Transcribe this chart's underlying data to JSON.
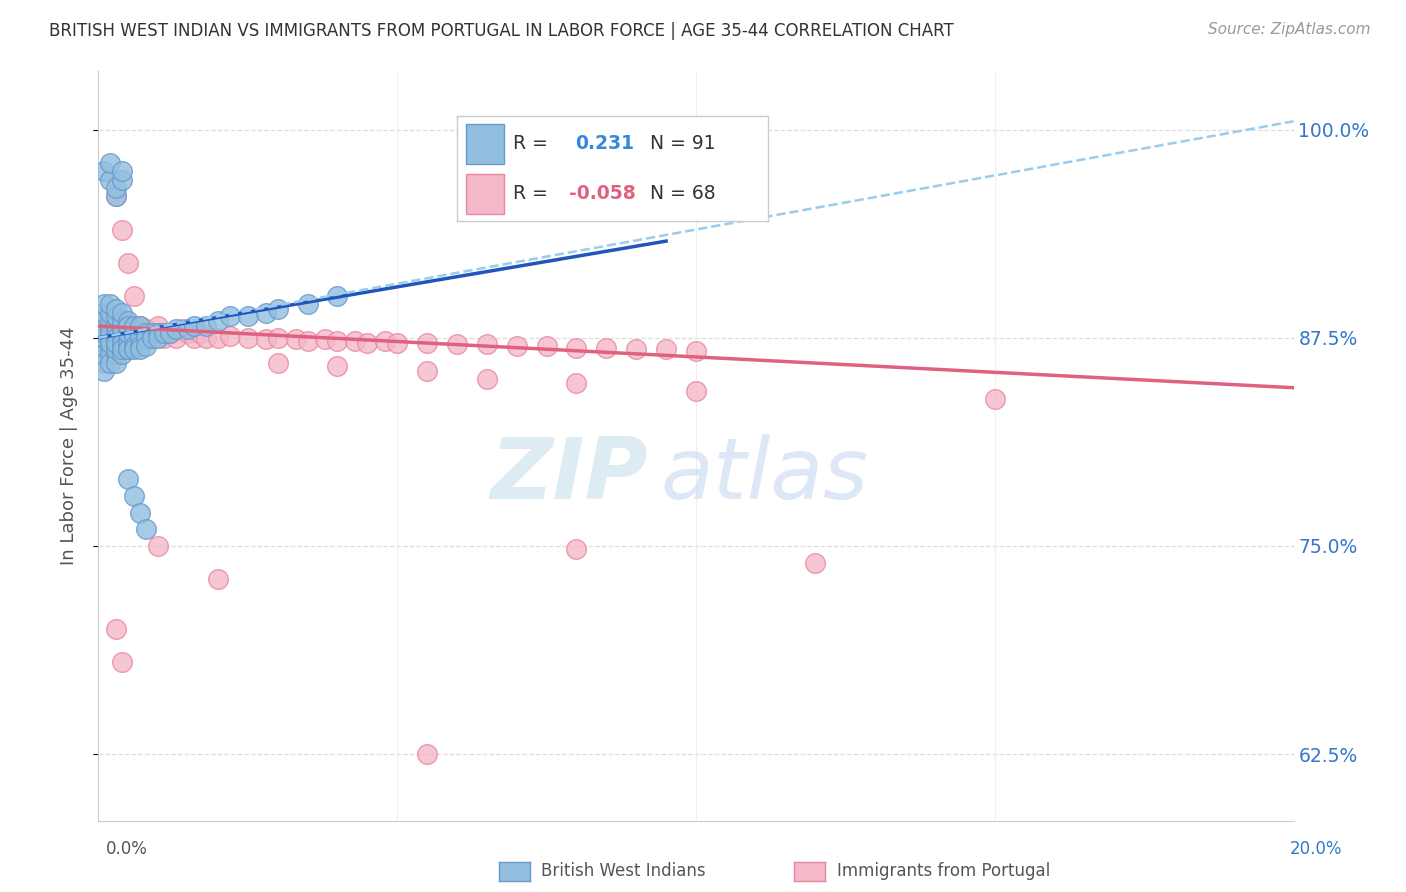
{
  "title": "BRITISH WEST INDIAN VS IMMIGRANTS FROM PORTUGAL IN LABOR FORCE | AGE 35-44 CORRELATION CHART",
  "source": "Source: ZipAtlas.com",
  "ylabel": "In Labor Force | Age 35-44",
  "xmin": 0.0,
  "xmax": 0.2,
  "ymin": 0.585,
  "ymax": 1.035,
  "yticks": [
    0.625,
    0.75,
    0.875,
    1.0
  ],
  "ytick_labels": [
    "62.5%",
    "75.0%",
    "87.5%",
    "100.0%"
  ],
  "xticks": [
    0.0,
    0.05,
    0.1,
    0.15,
    0.2
  ],
  "blue_color": "#92bfdf",
  "pink_color": "#f5b8c8",
  "blue_edge": "#6699cc",
  "pink_edge": "#e888a0",
  "trend_blue_color": "#2255bb",
  "trend_pink_color": "#e06080",
  "trend_dash_color": "#99ccee",
  "watermark_zip": "ZIP",
  "watermark_atlas": "atlas",
  "blue_R": "0.231",
  "blue_N": "91",
  "pink_R": "-0.058",
  "pink_N": "68",
  "blue_x": [
    0.001,
    0.001,
    0.001,
    0.001,
    0.001,
    0.001,
    0.001,
    0.001,
    0.001,
    0.001,
    0.002,
    0.002,
    0.002,
    0.002,
    0.002,
    0.002,
    0.002,
    0.002,
    0.002,
    0.002,
    0.003,
    0.003,
    0.003,
    0.003,
    0.003,
    0.003,
    0.003,
    0.003,
    0.003,
    0.003,
    0.004,
    0.004,
    0.004,
    0.004,
    0.004,
    0.004,
    0.004,
    0.004,
    0.004,
    0.004,
    0.005,
    0.005,
    0.005,
    0.005,
    0.005,
    0.005,
    0.005,
    0.005,
    0.005,
    0.005,
    0.006,
    0.006,
    0.006,
    0.006,
    0.006,
    0.007,
    0.007,
    0.007,
    0.007,
    0.007,
    0.008,
    0.008,
    0.008,
    0.009,
    0.009,
    0.01,
    0.01,
    0.011,
    0.012,
    0.013,
    0.015,
    0.016,
    0.018,
    0.02,
    0.022,
    0.025,
    0.028,
    0.03,
    0.035,
    0.04,
    0.001,
    0.002,
    0.002,
    0.003,
    0.003,
    0.004,
    0.004,
    0.005,
    0.006,
    0.007,
    0.008
  ],
  "blue_y": [
    0.88,
    0.885,
    0.89,
    0.895,
    0.87,
    0.875,
    0.865,
    0.86,
    0.855,
    0.878,
    0.88,
    0.885,
    0.875,
    0.87,
    0.865,
    0.86,
    0.89,
    0.895,
    0.878,
    0.872,
    0.882,
    0.878,
    0.875,
    0.87,
    0.865,
    0.86,
    0.888,
    0.892,
    0.868,
    0.872,
    0.878,
    0.882,
    0.875,
    0.87,
    0.865,
    0.885,
    0.89,
    0.878,
    0.872,
    0.868,
    0.878,
    0.882,
    0.875,
    0.87,
    0.868,
    0.885,
    0.872,
    0.868,
    0.878,
    0.882,
    0.878,
    0.875,
    0.87,
    0.882,
    0.868,
    0.878,
    0.875,
    0.87,
    0.882,
    0.868,
    0.878,
    0.875,
    0.87,
    0.878,
    0.875,
    0.878,
    0.875,
    0.878,
    0.878,
    0.88,
    0.88,
    0.882,
    0.882,
    0.885,
    0.888,
    0.888,
    0.89,
    0.892,
    0.895,
    0.9,
    0.975,
    0.97,
    0.98,
    0.96,
    0.965,
    0.97,
    0.975,
    0.79,
    0.78,
    0.77,
    0.76
  ],
  "pink_x": [
    0.001,
    0.002,
    0.002,
    0.003,
    0.003,
    0.004,
    0.004,
    0.005,
    0.005,
    0.006,
    0.006,
    0.007,
    0.007,
    0.008,
    0.008,
    0.009,
    0.009,
    0.01,
    0.01,
    0.011,
    0.012,
    0.013,
    0.014,
    0.015,
    0.016,
    0.017,
    0.018,
    0.02,
    0.022,
    0.025,
    0.028,
    0.03,
    0.033,
    0.035,
    0.038,
    0.04,
    0.043,
    0.045,
    0.048,
    0.05,
    0.055,
    0.06,
    0.065,
    0.07,
    0.075,
    0.08,
    0.085,
    0.09,
    0.095,
    0.1,
    0.003,
    0.004,
    0.005,
    0.006,
    0.03,
    0.04,
    0.055,
    0.065,
    0.08,
    0.1,
    0.003,
    0.004,
    0.01,
    0.02,
    0.055,
    0.08,
    0.12,
    0.15
  ],
  "pink_y": [
    0.88,
    0.875,
    0.882,
    0.878,
    0.888,
    0.88,
    0.875,
    0.878,
    0.882,
    0.875,
    0.88,
    0.878,
    0.882,
    0.875,
    0.88,
    0.878,
    0.875,
    0.882,
    0.878,
    0.875,
    0.878,
    0.875,
    0.88,
    0.878,
    0.875,
    0.878,
    0.875,
    0.875,
    0.876,
    0.875,
    0.874,
    0.875,
    0.874,
    0.873,
    0.874,
    0.873,
    0.873,
    0.872,
    0.873,
    0.872,
    0.872,
    0.871,
    0.871,
    0.87,
    0.87,
    0.869,
    0.869,
    0.868,
    0.868,
    0.867,
    0.96,
    0.94,
    0.92,
    0.9,
    0.86,
    0.858,
    0.855,
    0.85,
    0.848,
    0.843,
    0.7,
    0.68,
    0.75,
    0.73,
    0.625,
    0.748,
    0.74,
    0.838
  ]
}
